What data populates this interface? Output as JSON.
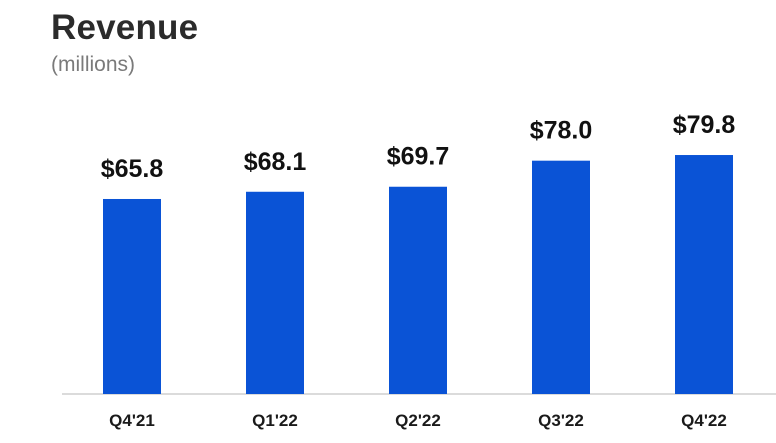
{
  "chart_data": {
    "type": "bar",
    "title": "Revenue",
    "subtitle": "(millions)",
    "categories": [
      "Q4'21",
      "Q1'22",
      "Q2'22",
      "Q3'22",
      "Q4'22"
    ],
    "values": [
      65.8,
      68.1,
      69.7,
      78.0,
      79.8
    ],
    "value_labels": [
      "$65.8",
      "$68.1",
      "$69.7",
      "$78.0",
      "$79.8"
    ],
    "xlabel": "",
    "ylabel": "",
    "ylim": [
      0,
      100
    ],
    "grid": false,
    "legend": "none",
    "bar_color": "#0a53d6",
    "axis_color": "#cfcfcf"
  }
}
